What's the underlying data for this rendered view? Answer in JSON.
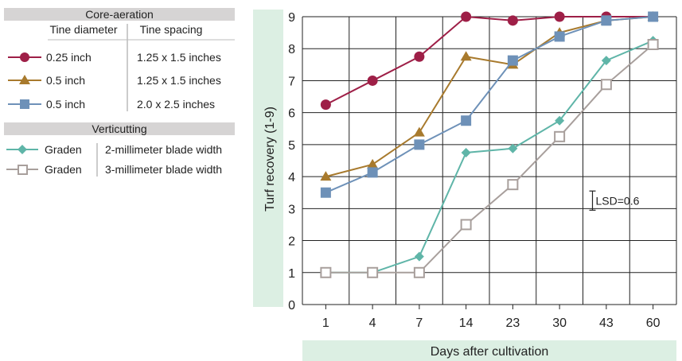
{
  "legend": {
    "aeration_title": "Core-aeration",
    "col_diameter": "Tine diameter",
    "col_spacing": "Tine spacing",
    "aeration_rows": [
      {
        "diameter": "0.25 inch",
        "spacing": "1.25 x 1.5 inches"
      },
      {
        "diameter": "0.5 inch",
        "spacing": "1.25 x 1.5 inches"
      },
      {
        "diameter": "0.5 inch",
        "spacing": "2.0 x 2.5 inches"
      }
    ],
    "verticutting_title": "Verticutting",
    "verticutting_rows": [
      {
        "machine": "Graden",
        "blade": "2-millimeter blade width"
      },
      {
        "machine": "Graden",
        "blade": "3-millimeter blade width"
      }
    ]
  },
  "colors": {
    "panel_bg": "#dcefe3",
    "header_bg": "#d6d4d4",
    "grid": "#222222"
  },
  "chart_data": {
    "type": "line",
    "categories": [
      "1",
      "4",
      "7",
      "14",
      "23",
      "30",
      "43",
      "60"
    ],
    "ylabel": "Turf recovery (1-9)",
    "xlabel": "Days after cultivation",
    "ylim": [
      0,
      9
    ],
    "yticks": [
      "0",
      "1",
      "2",
      "3",
      "4",
      "5",
      "6",
      "7",
      "8",
      "9"
    ],
    "grid": true,
    "annotation": "LSD=0.6",
    "lsd_value": 0.6,
    "series": [
      {
        "color": "#9e1f47",
        "marker": "circle",
        "values": [
          6.25,
          7.0,
          7.75,
          9.0,
          8.88,
          9.0,
          9.0,
          9.0
        ]
      },
      {
        "color": "#a87a2d",
        "marker": "triangle",
        "values": [
          4.0,
          4.38,
          5.38,
          7.75,
          7.5,
          8.5,
          8.88,
          9.0
        ]
      },
      {
        "color": "#6e91b8",
        "marker": "square",
        "values": [
          3.5,
          4.13,
          5.0,
          5.75,
          7.63,
          8.38,
          8.88,
          9.0
        ]
      },
      {
        "color": "#5fb5a8",
        "marker": "diamond",
        "values": [
          1.0,
          1.0,
          1.5,
          4.75,
          4.88,
          5.75,
          7.63,
          8.25
        ]
      },
      {
        "color": "#a89f9c",
        "marker": "open-square",
        "values": [
          1.0,
          1.0,
          1.0,
          2.5,
          3.75,
          5.25,
          6.88,
          8.13
        ]
      }
    ]
  }
}
